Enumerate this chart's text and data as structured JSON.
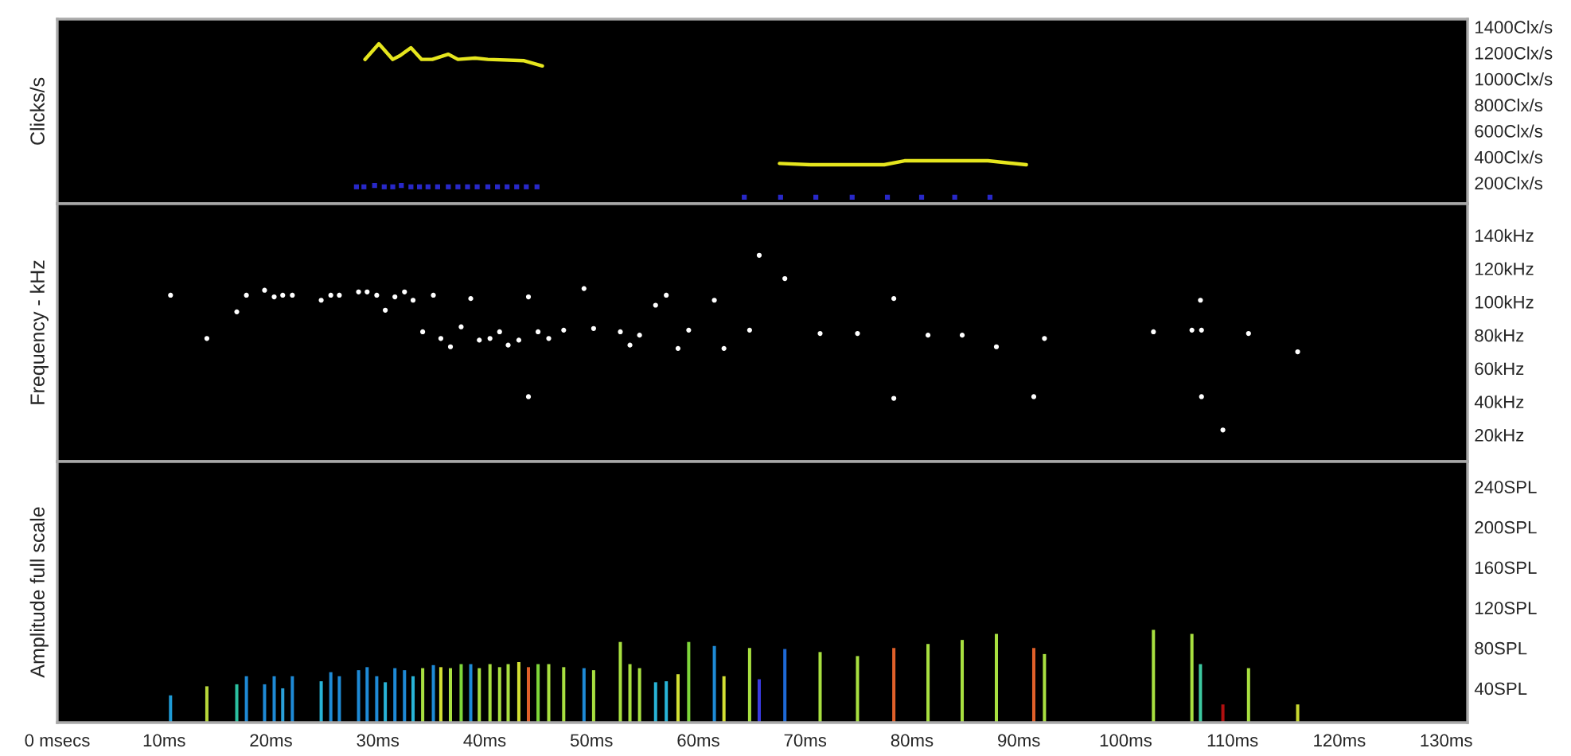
{
  "chart_data": [
    {
      "type": "line",
      "ylabel": "Clicks/s",
      "xlim": [
        0,
        132
      ],
      "ylim": [
        40,
        1460
      ],
      "tick_labels": "y",
      "grid": false,
      "yticks": [
        {
          "value": 200,
          "label": "200Clx/s"
        },
        {
          "value": 400,
          "label": "400Clx/s"
        },
        {
          "value": 600,
          "label": "600Clx/s"
        },
        {
          "value": 800,
          "label": "800Clx/s"
        },
        {
          "value": 1000,
          "label": "1000Clx/s"
        },
        {
          "value": 1200,
          "label": "1200Clx/s"
        },
        {
          "value": 1400,
          "label": "1400Clx/s"
        }
      ],
      "series": [
        {
          "type": "line",
          "color": "#e6e61e",
          "marker": "none",
          "line_style": "solid",
          "x": [
            28.8,
            30.1,
            31.4,
            32.1,
            33.1,
            34.1,
            35.1,
            36.6,
            37.5,
            39.1,
            40.3,
            43.7,
            45.4,
            56.0,
            67.6,
            70.5,
            77.4,
            79.3,
            87.1,
            90.7
          ],
          "values": [
            1150,
            1270,
            1150,
            1180,
            1240,
            1150,
            1150,
            1190,
            1150,
            1160,
            1150,
            1140,
            1100,
            null,
            350,
            340,
            340,
            370,
            370,
            340
          ]
        },
        {
          "type": "scatter",
          "color": "#2828c8",
          "marker": "square",
          "x": [
            28.0,
            28.7,
            29.7,
            30.6,
            31.4,
            32.2,
            33.1,
            33.9,
            34.7,
            35.6,
            36.6,
            37.5,
            38.4,
            39.3,
            40.3,
            41.2,
            42.1,
            43.0,
            43.9,
            44.9,
            64.3,
            67.7,
            71.0,
            74.4,
            77.7,
            80.9,
            84.0,
            87.3
          ],
          "values": [
            170,
            170,
            180,
            170,
            170,
            180,
            170,
            170,
            170,
            170,
            170,
            170,
            170,
            170,
            170,
            170,
            170,
            170,
            170,
            170,
            90,
            90,
            90,
            90,
            90,
            90,
            90,
            90
          ]
        }
      ]
    },
    {
      "type": "scatter",
      "ylabel": "Frequency - kHz",
      "xlim": [
        0,
        132
      ],
      "ylim": [
        4,
        159
      ],
      "tick_labels": "y",
      "grid": false,
      "marker": "circle",
      "yticks": [
        {
          "value": 20,
          "label": "20kHz"
        },
        {
          "value": 40,
          "label": "40kHz"
        },
        {
          "value": 60,
          "label": "60kHz"
        },
        {
          "value": 80,
          "label": "80kHz"
        },
        {
          "value": 100,
          "label": "100kHz"
        },
        {
          "value": 120,
          "label": "120kHz"
        },
        {
          "value": 140,
          "label": "140kHz"
        }
      ],
      "series": [
        {
          "color": "#ffffff",
          "x": [
            10.6,
            14.0,
            16.8,
            17.7,
            19.4,
            20.3,
            21.1,
            22.0,
            24.7,
            25.6,
            26.4,
            28.2,
            29.0,
            29.9,
            30.7,
            31.6,
            32.5,
            33.3,
            34.2,
            35.2,
            35.9,
            36.8,
            37.8,
            38.7,
            39.5,
            40.5,
            41.4,
            42.2,
            43.2,
            44.1,
            44.1,
            45.0,
            46.0,
            47.4,
            49.3,
            50.2,
            52.7,
            53.6,
            54.5,
            56.0,
            57.0,
            58.1,
            59.1,
            61.5,
            62.4,
            64.8,
            65.7,
            68.1,
            71.4,
            74.9,
            78.3,
            78.3,
            81.5,
            84.7,
            87.9,
            91.4,
            92.4,
            102.6,
            106.2,
            107.1,
            107.0,
            107.1,
            109.1,
            111.5,
            116.1
          ],
          "values": [
            104,
            78,
            94,
            104,
            107,
            103,
            104,
            104,
            101,
            104,
            104,
            106,
            106,
            104,
            95,
            103,
            106,
            101,
            82,
            104,
            78,
            73,
            85,
            102,
            77,
            78,
            82,
            74,
            77,
            103,
            43,
            82,
            78,
            83,
            108,
            84,
            82,
            74,
            80,
            98,
            104,
            72,
            83,
            101,
            72,
            83,
            128,
            114,
            81,
            81,
            102,
            42,
            80,
            80,
            73,
            43,
            78,
            82,
            83,
            83,
            101,
            43,
            23,
            81,
            70
          ]
        }
      ]
    },
    {
      "type": "bar",
      "ylabel": "Amplitude full scale",
      "xlim": [
        0,
        132
      ],
      "ylim": [
        6,
        265
      ],
      "grid": false,
      "xticks": [
        {
          "value": 0,
          "label": "0 msecs"
        },
        {
          "value": 10,
          "label": "10ms"
        },
        {
          "value": 20,
          "label": "20ms"
        },
        {
          "value": 30,
          "label": "30ms"
        },
        {
          "value": 40,
          "label": "40ms"
        },
        {
          "value": 50,
          "label": "50ms"
        },
        {
          "value": 60,
          "label": "60ms"
        },
        {
          "value": 70,
          "label": "70ms"
        },
        {
          "value": 80,
          "label": "80ms"
        },
        {
          "value": 90,
          "label": "90ms"
        },
        {
          "value": 100,
          "label": "100ms"
        },
        {
          "value": 110,
          "label": "110ms"
        },
        {
          "value": 120,
          "label": "120ms"
        },
        {
          "value": 130,
          "label": "130ms"
        }
      ],
      "yticks": [
        {
          "value": 40,
          "label": "40SPL"
        },
        {
          "value": 80,
          "label": "80SPL"
        },
        {
          "value": 120,
          "label": "120SPL"
        },
        {
          "value": 160,
          "label": "160SPL"
        },
        {
          "value": 200,
          "label": "200SPL"
        },
        {
          "value": 240,
          "label": "240SPL"
        }
      ],
      "x": [
        10.6,
        14.0,
        16.8,
        17.7,
        19.4,
        20.3,
        21.1,
        22.0,
        24.7,
        25.6,
        26.4,
        28.2,
        29.0,
        29.9,
        30.7,
        31.6,
        32.5,
        33.3,
        34.2,
        35.2,
        35.9,
        36.8,
        37.8,
        38.7,
        39.5,
        40.5,
        41.4,
        42.2,
        43.2,
        44.1,
        45.0,
        46.0,
        47.4,
        49.3,
        50.2,
        52.7,
        53.6,
        54.5,
        56.0,
        57.0,
        58.1,
        59.1,
        61.5,
        62.4,
        64.8,
        65.7,
        68.1,
        71.4,
        74.9,
        78.3,
        81.5,
        84.7,
        87.9,
        91.4,
        92.4,
        102.6,
        106.2,
        107.0,
        109.1,
        111.5,
        116.1
      ],
      "values": [
        33,
        42,
        44,
        52,
        44,
        52,
        40,
        52,
        47,
        56,
        52,
        58,
        61,
        52,
        46,
        60,
        58,
        52,
        60,
        63,
        61,
        60,
        64,
        64,
        60,
        64,
        61,
        64,
        66,
        61,
        64,
        64,
        61,
        60,
        58,
        86,
        64,
        60,
        46,
        47,
        54,
        86,
        82,
        52,
        80,
        49,
        79,
        76,
        72,
        80,
        84,
        88,
        94,
        80,
        74,
        98,
        94,
        64,
        24,
        60,
        24
      ],
      "colors": [
        "#1e9ad6",
        "#b8d83a",
        "#2cc0a0",
        "#1e8ad6",
        "#1e8ad6",
        "#1e8ad6",
        "#2aa0d8",
        "#1e8ad6",
        "#28b4d8",
        "#1e8ad6",
        "#1e8ad6",
        "#1e8ad6",
        "#1e8ad6",
        "#1e8ad6",
        "#28b4d8",
        "#1e8ad6",
        "#1e8ad6",
        "#28b4d8",
        "#a8e040",
        "#1e8ad6",
        "#d4e034",
        "#a8e040",
        "#7ed63a",
        "#1e8ad6",
        "#a8e040",
        "#a8e040",
        "#a8e040",
        "#a8e040",
        "#d4e034",
        "#e0602a",
        "#7ed63a",
        "#a8e040",
        "#a8e040",
        "#1e8ad6",
        "#a8e040",
        "#a8e040",
        "#a8e040",
        "#a8e040",
        "#28b4d8",
        "#28b4d8",
        "#d4e034",
        "#7ed63a",
        "#1e8ad6",
        "#d4e034",
        "#a8e040",
        "#3a3ae0",
        "#1e6ad6",
        "#a8e040",
        "#a8e040",
        "#e0602a",
        "#a8e040",
        "#a8e040",
        "#a8e040",
        "#e0602a",
        "#a8e040",
        "#a8e040",
        "#a8e040",
        "#3cc8a0",
        "#b01010",
        "#a8e040",
        "#c8d830"
      ]
    }
  ]
}
